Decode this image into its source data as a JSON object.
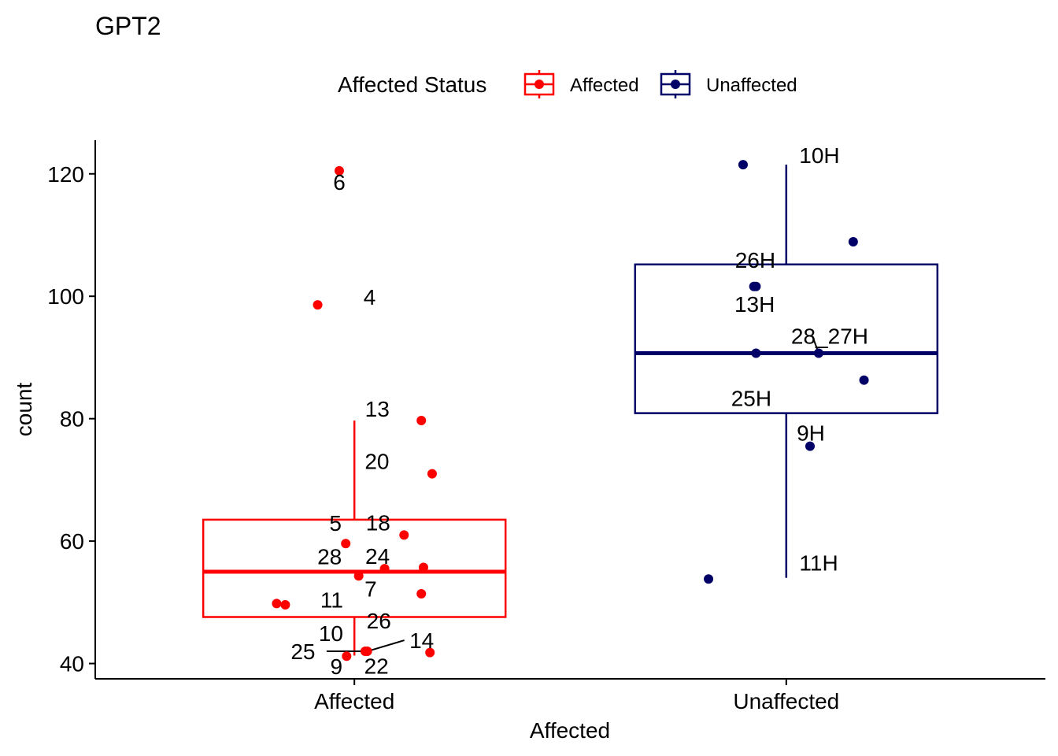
{
  "chart_data": {
    "type": "boxplot",
    "title": "GPT2",
    "xlabel": "Affected",
    "ylabel": "count",
    "ylim": [
      37.5,
      125.5
    ],
    "yticks": [
      40,
      60,
      80,
      100,
      120
    ],
    "ytick_labels": [
      "40",
      "60",
      "80",
      "100",
      "120"
    ],
    "categories": [
      "Affected",
      "Unaffected"
    ],
    "grid": false,
    "legend": {
      "title": "Affected Status",
      "position": "top",
      "entries": [
        {
          "label": "Affected",
          "color": "#ff0000"
        },
        {
          "label": "Unaffected",
          "color": "#000066"
        }
      ]
    },
    "boxes": [
      {
        "category": "Affected",
        "color": "#ff0000",
        "whisker_low": 41.3,
        "q1": 47.6,
        "median": 55.0,
        "q3": 63.5,
        "whisker_high": 79.7
      },
      {
        "category": "Unaffected",
        "color": "#000066",
        "whisker_low": 54.0,
        "q1": 80.9,
        "median": 90.7,
        "q3": 105.2,
        "whisker_high": 121.5
      }
    ],
    "points": [
      {
        "category": "Affected",
        "label": "6",
        "x_offset": -0.035,
        "y": 120.5,
        "label_dx": 0,
        "label_dy": 14
      },
      {
        "category": "Affected",
        "label": "4",
        "x_offset": -0.085,
        "y": 98.6,
        "label_dx": 66,
        "label_dy": -10
      },
      {
        "category": "Affected",
        "label": "13",
        "x_offset": 0.155,
        "y": 79.7,
        "label_dx": -56,
        "label_dy": -15
      },
      {
        "category": "Affected",
        "label": "20",
        "x_offset": 0.18,
        "y": 71.0,
        "label_dx": -70,
        "label_dy": -16
      },
      {
        "category": "Affected",
        "label": "18",
        "x_offset": 0.115,
        "y": 61.0,
        "label_dx": -33,
        "label_dy": -16
      },
      {
        "category": "Affected",
        "label": "5",
        "x_offset": -0.02,
        "y": 59.6,
        "label_dx": -13,
        "label_dy": -26
      },
      {
        "category": "Affected",
        "label": "24",
        "x_offset": 0.07,
        "y": 55.5,
        "label_dx": -9,
        "label_dy": -16
      },
      {
        "category": "Affected",
        "label": "28",
        "x_offset": 0.01,
        "y": 54.3,
        "label_dx": -37,
        "label_dy": -25
      },
      {
        "category": "Affected",
        "label": "7",
        "x_offset": 0.16,
        "y": 55.7,
        "label_dx": -67,
        "label_dy": 27
      },
      {
        "category": "Affected",
        "label": "11",
        "x_offset": -0.18,
        "y": 49.8,
        "label_dx": 70,
        "label_dy": -5
      },
      {
        "category": "Affected",
        "label": "10",
        "x_offset": -0.16,
        "y": 49.6,
        "label_dx": 58,
        "label_dy": 36
      },
      {
        "category": "Affected",
        "label": "26",
        "x_offset": 0.155,
        "y": 51.4,
        "label_dx": -54,
        "label_dy": 34
      },
      {
        "category": "Affected",
        "label": "25",
        "x_offset": 0.025,
        "y": 42.0,
        "label_dx": -79,
        "label_dy": 0,
        "leader": true
      },
      {
        "category": "Affected",
        "label": "14",
        "x_offset": 0.03,
        "y": 42.0,
        "label_dx": 69,
        "label_dy": -14,
        "leader": true
      },
      {
        "category": "Affected",
        "label": "9",
        "x_offset": -0.018,
        "y": 41.2,
        "label_dx": -13,
        "label_dy": 13
      },
      {
        "category": "Affected",
        "label": "22",
        "x_offset": 0.175,
        "y": 41.8,
        "label_dx": -68,
        "label_dy": 17
      },
      {
        "category": "Unaffected",
        "label": "10H",
        "x_offset": -0.1,
        "y": 121.5,
        "label_dx": 97,
        "label_dy": -12
      },
      {
        "category": "Unaffected",
        "label": "",
        "x_offset": 0.155,
        "y": 108.9,
        "label_dx": 0,
        "label_dy": 0
      },
      {
        "category": "Unaffected",
        "label": "26H",
        "x_offset": -0.07,
        "y": 101.6,
        "label_dx": -1,
        "label_dy": -34
      },
      {
        "category": "Unaffected",
        "label": "13H",
        "x_offset": -0.075,
        "y": 101.6,
        "label_dx": 1,
        "label_dy": 22
      },
      {
        "category": "Unaffected",
        "label": "28_27H",
        "x_offset": 0.075,
        "y": 90.7,
        "label_dx": 14,
        "label_dy": -22,
        "leader": true
      },
      {
        "category": "Unaffected",
        "label": "",
        "x_offset": 0.18,
        "y": 86.3,
        "label_dx": 0,
        "label_dy": 0
      },
      {
        "category": "Unaffected",
        "label": "25H",
        "x_offset": -0.07,
        "y": 90.7,
        "label_dx": -6,
        "label_dy": 57
      },
      {
        "category": "Unaffected",
        "label": "9H",
        "x_offset": 0.055,
        "y": 75.5,
        "label_dx": 1,
        "label_dy": -17
      },
      {
        "category": "Unaffected",
        "label": "11H",
        "x_offset": -0.18,
        "y": 53.8,
        "label_dx": 140,
        "label_dy": -21
      }
    ]
  }
}
